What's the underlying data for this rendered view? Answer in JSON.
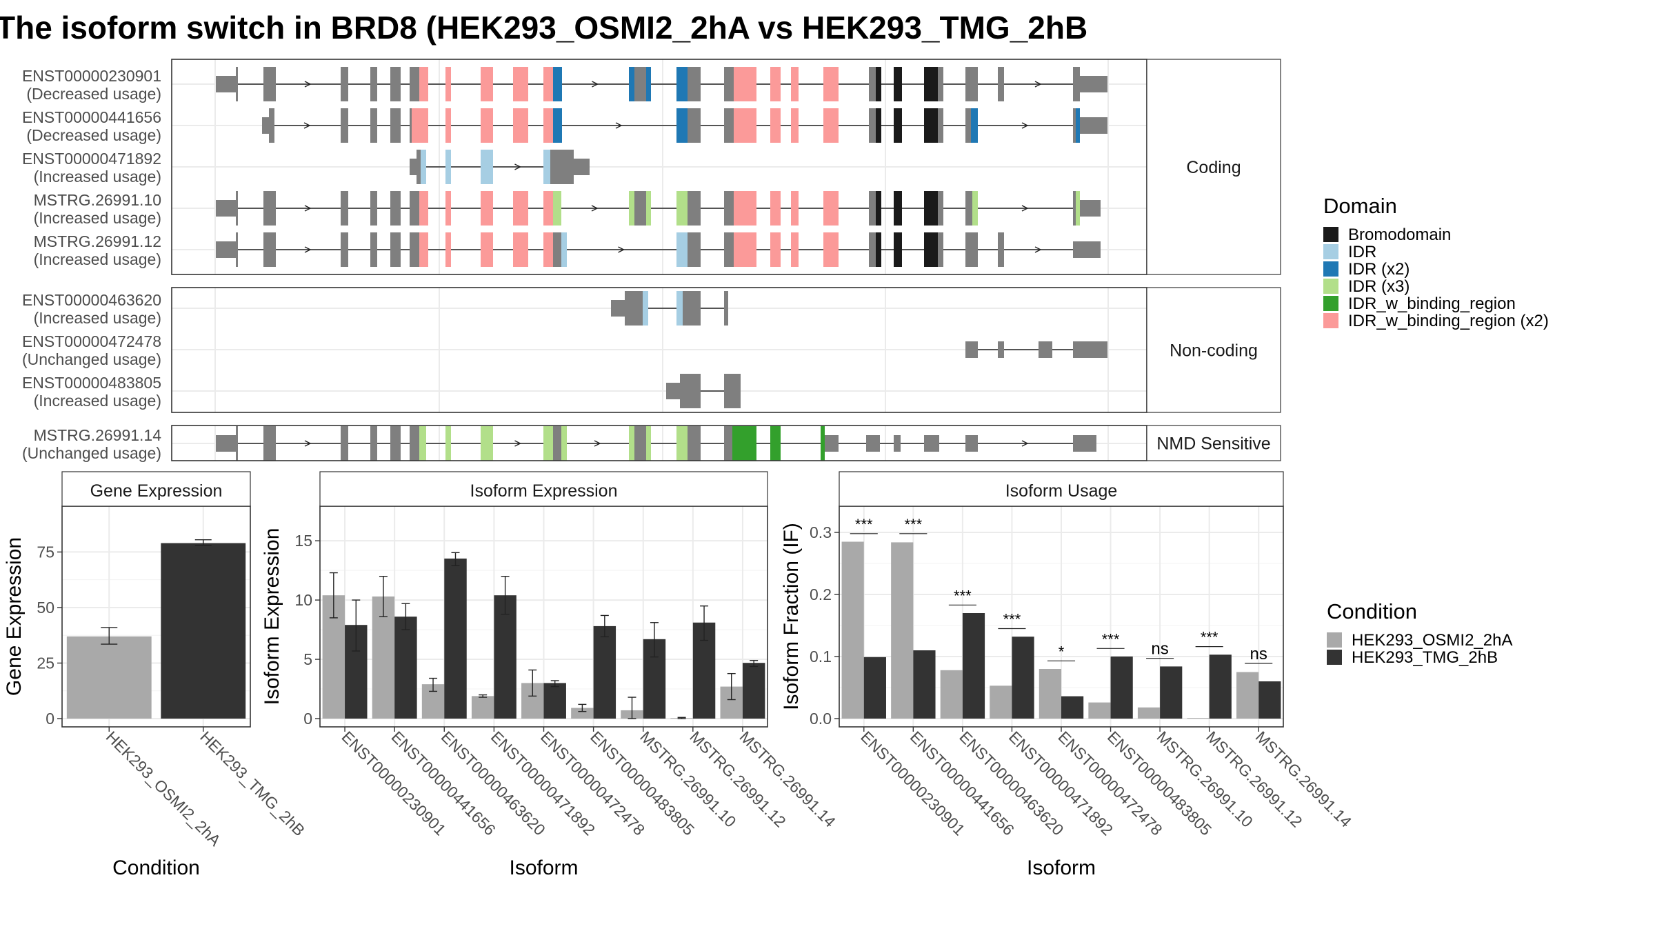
{
  "title": "The isoform switch in BRD8 (HEK293_OSMI2_2hA vs HEK293_TMG_2hB",
  "colors": {
    "exon_gray": "#7f7f7f",
    "condition_a": "#a9a9a9",
    "condition_b": "#333333",
    "Bromodomain": "#1a1a1a",
    "IDR": "#a6cee3",
    "IDR (x2)": "#1f78b4",
    "IDR (x3)": "#b2df8a",
    "IDR_w_binding_region": "#33a02c",
    "IDR_w_binding_region (x2)": "#fb9a99"
  },
  "domain_legend": {
    "title": "Domain",
    "items": [
      "Bromodomain",
      "IDR",
      "IDR (x2)",
      "IDR (x3)",
      "IDR_w_binding_region",
      "IDR_w_binding_region (x2)"
    ]
  },
  "condition_legend": {
    "title": "Condition",
    "items": [
      "HEK293_OSMI2_2hA",
      "HEK293_TMG_2hB"
    ]
  },
  "panels": [
    {
      "label": "Coding",
      "transcripts": [
        {
          "name": "ENST00000230901",
          "usage": "(Decreased usage)"
        },
        {
          "name": "ENST00000441656",
          "usage": "(Decreased usage)"
        },
        {
          "name": "ENST00000471892",
          "usage": "(Increased usage)"
        },
        {
          "name": "MSTRG.26991.10",
          "usage": "(Increased usage)"
        },
        {
          "name": "MSTRG.26991.12",
          "usage": "(Increased usage)"
        }
      ]
    },
    {
      "label": "Non-coding",
      "transcripts": [
        {
          "name": "ENST00000463620",
          "usage": "(Increased usage)"
        },
        {
          "name": "ENST00000472478",
          "usage": "(Unchanged usage)"
        },
        {
          "name": "ENST00000483805",
          "usage": "(Increased usage)"
        }
      ]
    },
    {
      "label": "NMD Sensitive",
      "transcripts": [
        {
          "name": "MSTRG.26991.14",
          "usage": "(Unchanged usage)"
        }
      ]
    }
  ],
  "chart_data": [
    {
      "type": "bar",
      "title": "Gene Expression",
      "xlabel": "Condition",
      "ylabel": "Gene Expression",
      "ylim": [
        0,
        95
      ],
      "yticks": [
        0,
        25,
        50,
        75
      ],
      "categories": [
        "HEK293_OSMI2_2hA",
        "HEK293_TMG_2hB"
      ],
      "values": [
        37,
        79
      ],
      "errors": [
        [
          33.5,
          41
        ],
        [
          78,
          80.5
        ]
      ]
    },
    {
      "type": "bar",
      "title": "Isoform Expression",
      "xlabel": "Isoform",
      "ylabel": "Isoform Expression",
      "ylim": [
        0,
        17.8
      ],
      "yticks": [
        0,
        5,
        10,
        15
      ],
      "categories": [
        "ENST00000230901",
        "ENST00000441656",
        "ENST00000463620",
        "ENST00000471892",
        "ENST00000472478",
        "ENST00000483805",
        "MSTRG.26991.10",
        "MSTRG.26991.12",
        "MSTRG.26991.14"
      ],
      "series": [
        {
          "name": "HEK293_OSMI2_2hA",
          "values": [
            10.4,
            10.3,
            2.9,
            1.9,
            3.0,
            0.9,
            0.7,
            0.05,
            2.7
          ],
          "errors": [
            [
              8.5,
              12.3
            ],
            [
              8.6,
              12.0
            ],
            [
              2.3,
              3.4
            ],
            [
              1.8,
              2.0
            ],
            [
              1.9,
              4.1
            ],
            [
              0.6,
              1.2
            ],
            [
              0,
              1.8
            ],
            [
              0,
              0.1
            ],
            [
              1.6,
              3.8
            ]
          ]
        },
        {
          "name": "HEK293_TMG_2hB",
          "values": [
            7.9,
            8.6,
            13.5,
            10.4,
            3.0,
            7.8,
            6.7,
            8.1,
            4.7
          ],
          "errors": [
            [
              5.7,
              10.0
            ],
            [
              7.5,
              9.7
            ],
            [
              12.9,
              14.0
            ],
            [
              8.8,
              12.0
            ],
            [
              2.7,
              3.2
            ],
            [
              6.9,
              8.7
            ],
            [
              5.2,
              8.1
            ],
            [
              6.6,
              9.5
            ],
            [
              4.4,
              4.9
            ]
          ]
        }
      ]
    },
    {
      "type": "bar",
      "title": "Isoform Usage",
      "xlabel": "Isoform",
      "ylabel": "Isoform Fraction (IF)",
      "ylim": [
        0,
        0.34
      ],
      "yticks": [
        0.0,
        0.1,
        0.2,
        0.3
      ],
      "ytick_labels": [
        "0.0",
        "0.1",
        "0.2",
        "0.3"
      ],
      "categories": [
        "ENST00000230901",
        "ENST00000441656",
        "ENST00000463620",
        "ENST00000471892",
        "ENST00000472478",
        "ENST00000483805",
        "MSTRG.26991.10",
        "MSTRG.26991.12",
        "MSTRG.26991.14"
      ],
      "series": [
        {
          "name": "HEK293_OSMI2_2hA",
          "values": [
            0.285,
            0.284,
            0.078,
            0.053,
            0.08,
            0.026,
            0.018,
            0.001,
            0.075
          ]
        },
        {
          "name": "HEK293_TMG_2hB",
          "values": [
            0.099,
            0.11,
            0.17,
            0.132,
            0.036,
            0.1,
            0.084,
            0.103,
            0.06
          ]
        }
      ],
      "significance": [
        "***",
        "***",
        "***",
        "***",
        "*",
        "***",
        "ns",
        "***",
        "ns"
      ],
      "significance_y": [
        0.298,
        0.298,
        0.183,
        0.145,
        0.093,
        0.113,
        0.097,
        0.116,
        0.089
      ]
    }
  ]
}
